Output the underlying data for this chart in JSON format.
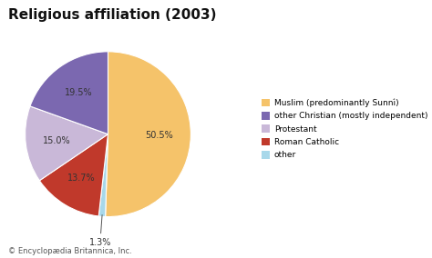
{
  "title": "Religious affiliation (2003)",
  "title_fontsize": 11,
  "caption": "© Encyclopædia Britannica, Inc.",
  "slices": [
    50.5,
    1.3,
    13.7,
    15.0,
    19.5
  ],
  "pct_labels": [
    "50.5%",
    "1.3%",
    "13.7%",
    "15.0%",
    "19.5%"
  ],
  "legend_labels": [
    "Muslim (predominantly Sunní)",
    "other Christian (mostly independent)",
    "Protestant",
    "Roman Catholic",
    "other"
  ],
  "colors": [
    "#F5C36A",
    "#A8D8EA",
    "#C0392B",
    "#C9B8D8",
    "#7B68B0"
  ],
  "startangle": 90,
  "background_color": "#ffffff"
}
